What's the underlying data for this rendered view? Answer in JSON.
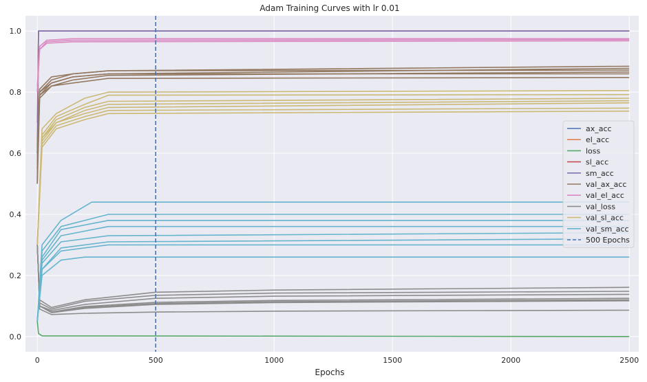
{
  "chart_data": {
    "type": "line",
    "title": "Adam Training Curves with lr 0.01",
    "xlabel": "Epochs",
    "ylabel": "",
    "xlim": [
      -50,
      2540
    ],
    "ylim": [
      -0.05,
      1.05
    ],
    "xticks": [
      0,
      500,
      1000,
      1500,
      2000,
      2500
    ],
    "yticks": [
      0.0,
      0.2,
      0.4,
      0.6,
      0.8,
      1.0
    ],
    "grid": true,
    "legend_position": "center-right",
    "vline": {
      "x": 500,
      "label": "500 Epochs",
      "color": "#4c72b0"
    },
    "series": [
      {
        "name": "ax_acc",
        "color": "#4c72b0",
        "runs": [
          [
            [
              0,
              0.6
            ],
            [
              5,
              1.0
            ],
            [
              2500,
              1.0
            ]
          ]
        ]
      },
      {
        "name": "el_acc",
        "color": "#dd8452",
        "runs": [
          [
            [
              0,
              0.7
            ],
            [
              5,
              1.0
            ],
            [
              2500,
              1.0
            ]
          ]
        ]
      },
      {
        "name": "loss",
        "color": "#55a868",
        "runs": [
          [
            [
              0,
              0.05
            ],
            [
              5,
              0.01
            ],
            [
              20,
              0.002
            ],
            [
              2500,
              0.0
            ]
          ]
        ]
      },
      {
        "name": "sl_acc",
        "color": "#c44e52",
        "runs": [
          [
            [
              0,
              0.5
            ],
            [
              5,
              1.0
            ],
            [
              2500,
              1.0
            ]
          ]
        ]
      },
      {
        "name": "sm_acc",
        "color": "#8172b3",
        "runs": [
          [
            [
              0,
              0.5
            ],
            [
              5,
              1.0
            ],
            [
              2500,
              1.0
            ]
          ]
        ]
      },
      {
        "name": "val_ax_acc",
        "color": "#937860",
        "runs": [
          [
            [
              0,
              0.6
            ],
            [
              10,
              0.8
            ],
            [
              60,
              0.84
            ],
            [
              150,
              0.86
            ],
            [
              300,
              0.87
            ],
            [
              2500,
              0.885
            ]
          ],
          [
            [
              0,
              0.55
            ],
            [
              10,
              0.79
            ],
            [
              60,
              0.83
            ],
            [
              150,
              0.85
            ],
            [
              300,
              0.86
            ],
            [
              2500,
              0.878
            ]
          ],
          [
            [
              0,
              0.6
            ],
            [
              10,
              0.81
            ],
            [
              60,
              0.85
            ],
            [
              150,
              0.86
            ],
            [
              300,
              0.87
            ],
            [
              2500,
              0.872
            ]
          ],
          [
            [
              0,
              0.5
            ],
            [
              10,
              0.78
            ],
            [
              60,
              0.82
            ],
            [
              150,
              0.84
            ],
            [
              300,
              0.855
            ],
            [
              2500,
              0.866
            ]
          ],
          [
            [
              0,
              0.6
            ],
            [
              10,
              0.8
            ],
            [
              60,
              0.83
            ],
            [
              150,
              0.85
            ],
            [
              300,
              0.86
            ],
            [
              2500,
              0.86
            ]
          ],
          [
            [
              0,
              0.55
            ],
            [
              10,
              0.79
            ],
            [
              60,
              0.82
            ],
            [
              150,
              0.83
            ],
            [
              300,
              0.845
            ],
            [
              2500,
              0.848
            ]
          ]
        ]
      },
      {
        "name": "val_el_acc",
        "color": "#da8bc3",
        "runs": [
          [
            [
              0,
              0.8
            ],
            [
              10,
              0.94
            ],
            [
              40,
              0.965
            ],
            [
              150,
              0.97
            ],
            [
              2500,
              0.972
            ]
          ],
          [
            [
              0,
              0.82
            ],
            [
              10,
              0.95
            ],
            [
              40,
              0.97
            ],
            [
              150,
              0.975
            ],
            [
              2500,
              0.975
            ]
          ],
          [
            [
              0,
              0.8
            ],
            [
              10,
              0.94
            ],
            [
              40,
              0.96
            ],
            [
              150,
              0.965
            ],
            [
              2500,
              0.968
            ]
          ]
        ]
      },
      {
        "name": "val_loss",
        "color": "#8c8c8c",
        "runs": [
          [
            [
              0,
              0.3
            ],
            [
              10,
              0.12
            ],
            [
              60,
              0.095
            ],
            [
              200,
              0.12
            ],
            [
              500,
              0.145
            ],
            [
              1000,
              0.152
            ],
            [
              2500,
              0.161
            ]
          ],
          [
            [
              0,
              0.3
            ],
            [
              10,
              0.11
            ],
            [
              60,
              0.09
            ],
            [
              200,
              0.115
            ],
            [
              500,
              0.135
            ],
            [
              1000,
              0.142
            ],
            [
              2500,
              0.148
            ]
          ],
          [
            [
              0,
              0.3
            ],
            [
              10,
              0.1
            ],
            [
              60,
              0.085
            ],
            [
              200,
              0.105
            ],
            [
              500,
              0.125
            ],
            [
              1000,
              0.132
            ],
            [
              2500,
              0.138
            ]
          ],
          [
            [
              0,
              0.3
            ],
            [
              10,
              0.1
            ],
            [
              60,
              0.08
            ],
            [
              200,
              0.098
            ],
            [
              500,
              0.112
            ],
            [
              1000,
              0.118
            ],
            [
              2500,
              0.125
            ]
          ],
          [
            [
              0,
              0.3
            ],
            [
              10,
              0.1
            ],
            [
              60,
              0.08
            ],
            [
              200,
              0.095
            ],
            [
              500,
              0.108
            ],
            [
              1000,
              0.114
            ],
            [
              2500,
              0.12
            ]
          ],
          [
            [
              0,
              0.3
            ],
            [
              10,
              0.1
            ],
            [
              60,
              0.078
            ],
            [
              200,
              0.092
            ],
            [
              500,
              0.105
            ],
            [
              1000,
              0.111
            ],
            [
              2500,
              0.117
            ]
          ],
          [
            [
              0,
              0.3
            ],
            [
              10,
              0.09
            ],
            [
              60,
              0.072
            ],
            [
              200,
              0.076
            ],
            [
              500,
              0.08
            ],
            [
              1000,
              0.083
            ],
            [
              2500,
              0.086
            ]
          ]
        ]
      },
      {
        "name": "val_sl_acc",
        "color": "#ccb974",
        "runs": [
          [
            [
              0,
              0.3
            ],
            [
              20,
              0.68
            ],
            [
              80,
              0.73
            ],
            [
              200,
              0.78
            ],
            [
              300,
              0.8
            ],
            [
              2500,
              0.805
            ]
          ],
          [
            [
              0,
              0.3
            ],
            [
              20,
              0.66
            ],
            [
              80,
              0.72
            ],
            [
              200,
              0.76
            ],
            [
              300,
              0.79
            ],
            [
              2500,
              0.792
            ]
          ],
          [
            [
              0,
              0.3
            ],
            [
              20,
              0.65
            ],
            [
              80,
              0.71
            ],
            [
              200,
              0.75
            ],
            [
              300,
              0.77
            ],
            [
              2500,
              0.78
            ]
          ],
          [
            [
              0,
              0.3
            ],
            [
              20,
              0.64
            ],
            [
              80,
              0.7
            ],
            [
              200,
              0.74
            ],
            [
              300,
              0.76
            ],
            [
              2500,
              0.772
            ]
          ],
          [
            [
              0,
              0.3
            ],
            [
              20,
              0.65
            ],
            [
              80,
              0.7
            ],
            [
              200,
              0.73
            ],
            [
              300,
              0.75
            ],
            [
              2500,
              0.765
            ]
          ],
          [
            [
              0,
              0.3
            ],
            [
              20,
              0.63
            ],
            [
              80,
              0.69
            ],
            [
              200,
              0.72
            ],
            [
              300,
              0.74
            ],
            [
              2500,
              0.748
            ]
          ],
          [
            [
              0,
              0.3
            ],
            [
              20,
              0.62
            ],
            [
              80,
              0.68
            ],
            [
              200,
              0.71
            ],
            [
              300,
              0.73
            ],
            [
              2500,
              0.738
            ]
          ]
        ]
      },
      {
        "name": "val_sm_acc",
        "color": "#64b5cd",
        "runs": [
          [
            [
              0,
              0.05
            ],
            [
              20,
              0.3
            ],
            [
              100,
              0.38
            ],
            [
              230,
              0.44
            ],
            [
              2500,
              0.44
            ]
          ],
          [
            [
              0,
              0.05
            ],
            [
              20,
              0.28
            ],
            [
              100,
              0.36
            ],
            [
              300,
              0.4
            ],
            [
              2500,
              0.4
            ]
          ],
          [
            [
              0,
              0.05
            ],
            [
              20,
              0.26
            ],
            [
              100,
              0.35
            ],
            [
              300,
              0.38
            ],
            [
              2500,
              0.38
            ]
          ],
          [
            [
              0,
              0.05
            ],
            [
              20,
              0.25
            ],
            [
              100,
              0.33
            ],
            [
              300,
              0.36
            ],
            [
              2500,
              0.36
            ]
          ],
          [
            [
              0,
              0.05
            ],
            [
              20,
              0.24
            ],
            [
              100,
              0.31
            ],
            [
              300,
              0.33
            ],
            [
              2500,
              0.34
            ]
          ],
          [
            [
              0,
              0.05
            ],
            [
              20,
              0.22
            ],
            [
              100,
              0.29
            ],
            [
              300,
              0.31
            ],
            [
              2500,
              0.32
            ]
          ],
          [
            [
              0,
              0.05
            ],
            [
              20,
              0.22
            ],
            [
              100,
              0.28
            ],
            [
              300,
              0.3
            ],
            [
              2500,
              0.3
            ]
          ],
          [
            [
              0,
              0.05
            ],
            [
              20,
              0.2
            ],
            [
              100,
              0.25
            ],
            [
              200,
              0.26
            ],
            [
              2500,
              0.26
            ]
          ]
        ]
      }
    ]
  }
}
